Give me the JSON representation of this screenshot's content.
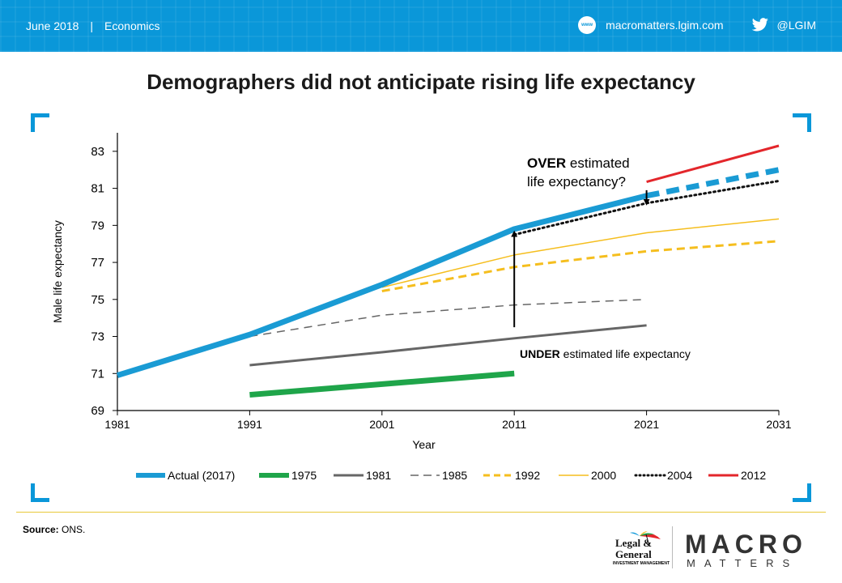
{
  "header": {
    "date": "June 2018",
    "separator": "|",
    "section": "Economics",
    "www_badge": "www",
    "website": "macromatters.lgim.com",
    "twitter": "@LGIM",
    "website_icon": "globe-icon",
    "twitter_icon": "twitter-bird-icon",
    "color": "#0a97d9"
  },
  "chart_data": {
    "type": "line",
    "title": "Demographers did not anticipate rising life expectancy",
    "xlabel": "Year",
    "ylabel": "Male life expectancy",
    "xlim": [
      1981,
      2031
    ],
    "ylim": [
      69,
      84
    ],
    "xticks": [
      "1981",
      "1991",
      "2001",
      "2011",
      "2021",
      "2031"
    ],
    "yticks": [
      "69",
      "71",
      "73",
      "75",
      "77",
      "79",
      "81",
      "83"
    ],
    "grid": false,
    "legend_position": "bottom",
    "series": [
      {
        "name": "Actual (2017)",
        "color": "#1a9bd4",
        "style": "solid",
        "weight": "thick",
        "x": [
          1981,
          1991,
          2001,
          2011,
          2021
        ],
        "y": [
          70.9,
          73.1,
          75.8,
          78.8,
          80.6
        ]
      },
      {
        "name": "",
        "color": "#1a9bd4",
        "style": "dashed",
        "weight": "thick",
        "x": [
          2021,
          2031
        ],
        "y": [
          80.6,
          82.0
        ]
      },
      {
        "name": "1975",
        "color": "#1fa54a",
        "style": "solid",
        "weight": "thick",
        "x": [
          1991,
          2011
        ],
        "y": [
          69.85,
          71.0
        ]
      },
      {
        "name": "1981",
        "color": "#666666",
        "style": "solid",
        "weight": "medium",
        "x": [
          1991,
          2001,
          2011,
          2021
        ],
        "y": [
          71.45,
          72.15,
          72.9,
          73.6
        ]
      },
      {
        "name": "1985",
        "color": "#666666",
        "style": "dashed",
        "weight": "thin",
        "x": [
          1991,
          2001,
          2011,
          2021
        ],
        "y": [
          73.0,
          74.15,
          74.7,
          75.0
        ]
      },
      {
        "name": "1992",
        "color": "#f5be1e",
        "style": "dashed",
        "weight": "medium",
        "x": [
          2001,
          2011,
          2021,
          2031
        ],
        "y": [
          75.45,
          76.75,
          77.6,
          78.15
        ]
      },
      {
        "name": "2000",
        "color": "#f5be1e",
        "style": "solid",
        "weight": "thin",
        "x": [
          2001,
          2011,
          2021,
          2031
        ],
        "y": [
          75.65,
          77.4,
          78.6,
          79.35
        ]
      },
      {
        "name": "2004",
        "color": "#111111",
        "style": "dotted",
        "weight": "medium",
        "x": [
          2011,
          2021,
          2031
        ],
        "y": [
          78.5,
          80.2,
          81.4
        ]
      },
      {
        "name": "2012",
        "color": "#e3262b",
        "style": "solid",
        "weight": "medium",
        "x": [
          2021,
          2031
        ],
        "y": [
          81.35,
          83.3
        ]
      }
    ],
    "annotations": [
      {
        "bold": "OVER",
        "text": " estimated",
        "line2": "life expectancy?",
        "arrow_from": [
          2021,
          80.9
        ],
        "arrow_to": [
          2021,
          80.25
        ]
      },
      {
        "bold": "UNDER",
        "text": " estimated life expectancy",
        "arrow_from": [
          2011,
          73.5
        ],
        "arrow_to": [
          2011,
          78.55
        ]
      }
    ]
  },
  "footer": {
    "source_label": "Source:",
    "source_text": " ONS.",
    "lg_name_line1": "Legal &",
    "lg_name_line2": "General",
    "lg_subtitle": "INVESTMENT MANAGEMENT",
    "lg_icon": "umbrella-icon",
    "macro": "MACRO",
    "matters": "MATTERS",
    "globe_icon": "globe-icon"
  }
}
